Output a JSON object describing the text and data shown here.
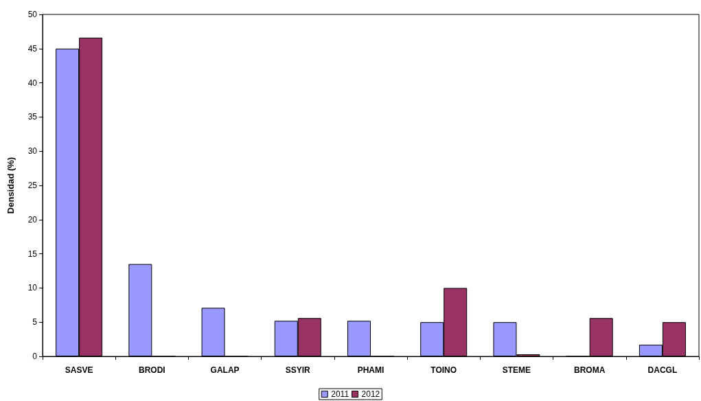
{
  "chart_data": {
    "type": "bar",
    "ylabel": "Densidad (%)",
    "categories": [
      "SASVE",
      "BRODI",
      "GALAP",
      "SSYIR",
      "PHAMI",
      "TOINO",
      "STEME",
      "BROMA",
      "DACGL"
    ],
    "series": [
      {
        "name": "2011",
        "color": "#9999ff",
        "values": [
          45,
          13.5,
          7.1,
          5.2,
          5.2,
          5.0,
          5.0,
          0,
          1.7
        ]
      },
      {
        "name": "2012",
        "color": "#993366",
        "values": [
          46.6,
          0,
          0,
          5.6,
          0,
          10,
          0.3,
          5.6,
          5.0
        ]
      }
    ],
    "ylim": [
      0,
      50
    ],
    "yticks": [
      0,
      5,
      10,
      15,
      20,
      25,
      30,
      35,
      40,
      45,
      50
    ],
    "grid": false,
    "legend": "bottom"
  }
}
